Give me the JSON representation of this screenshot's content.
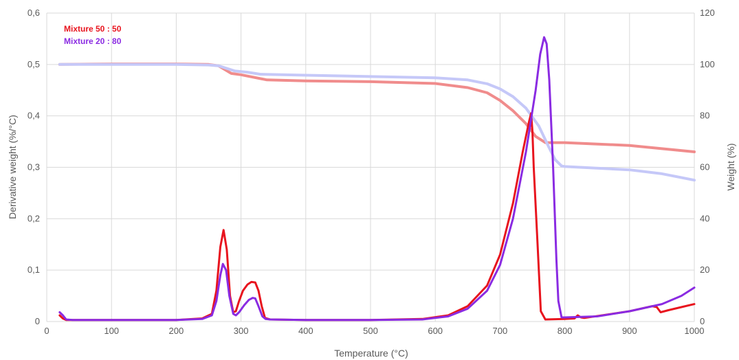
{
  "chart_data": {
    "type": "line",
    "xlabel": "Temperature  (°C)",
    "ylabel": "Derivative weight (%/°C)",
    "y2label": "Weight (%)",
    "xlim": [
      0,
      1000
    ],
    "ylim": [
      0,
      0.6
    ],
    "y2lim": [
      0,
      120
    ],
    "x_ticks": [
      "0",
      "100",
      "200",
      "300",
      "400",
      "500",
      "600",
      "700",
      "800",
      "900",
      "1000"
    ],
    "y_ticks": [
      "0",
      "0,1",
      "0,2",
      "0,3",
      "0,4",
      "0,5",
      "0,6"
    ],
    "y2_ticks": [
      "0",
      "20",
      "40",
      "60",
      "80",
      "100",
      "120"
    ],
    "grid": true,
    "legend": {
      "position": "top-left",
      "entries": [
        {
          "label": "Mixture 50 : 50",
          "color": "#e8141e"
        },
        {
          "label": "Mixture 20 : 80",
          "color": "#8a2be2"
        }
      ]
    },
    "series": [
      {
        "name": "Mixture 50 : 50",
        "axis": "left",
        "color": "#e8141e",
        "x": [
          20,
          25,
          30,
          40,
          60,
          100,
          150,
          200,
          240,
          255,
          262,
          268,
          273,
          278,
          283,
          288,
          292,
          297,
          303,
          310,
          316,
          322,
          327,
          332,
          337,
          345,
          400,
          500,
          580,
          620,
          650,
          680,
          700,
          720,
          735,
          745,
          748,
          750,
          752,
          758,
          763,
          770,
          800,
          815,
          820,
          825,
          830,
          900,
          935,
          942,
          948,
          960,
          980,
          1000
        ],
        "y": [
          0.012,
          0.006,
          0.003,
          0.003,
          0.003,
          0.003,
          0.003,
          0.003,
          0.006,
          0.015,
          0.06,
          0.145,
          0.178,
          0.14,
          0.05,
          0.018,
          0.02,
          0.04,
          0.06,
          0.072,
          0.077,
          0.076,
          0.06,
          0.03,
          0.007,
          0.004,
          0.003,
          0.003,
          0.005,
          0.012,
          0.03,
          0.07,
          0.13,
          0.23,
          0.33,
          0.39,
          0.405,
          0.37,
          0.3,
          0.15,
          0.02,
          0.004,
          0.005,
          0.006,
          0.012,
          0.008,
          0.007,
          0.02,
          0.03,
          0.028,
          0.018,
          0.022,
          0.028,
          0.034
        ]
      },
      {
        "name": "Mixture 20 : 80",
        "axis": "left",
        "color": "#8a2be2",
        "x": [
          20,
          25,
          30,
          40,
          60,
          100,
          150,
          200,
          240,
          255,
          262,
          268,
          272,
          277,
          282,
          288,
          292,
          297,
          305,
          312,
          318,
          322,
          327,
          333,
          338,
          345,
          400,
          500,
          580,
          620,
          650,
          680,
          700,
          720,
          740,
          755,
          762,
          768,
          772,
          776,
          782,
          787,
          790,
          795,
          800,
          850,
          900,
          950,
          980,
          1000
        ],
        "y": [
          0.018,
          0.012,
          0.004,
          0.003,
          0.003,
          0.003,
          0.003,
          0.003,
          0.005,
          0.012,
          0.04,
          0.09,
          0.112,
          0.1,
          0.05,
          0.015,
          0.012,
          0.018,
          0.032,
          0.042,
          0.046,
          0.045,
          0.03,
          0.01,
          0.005,
          0.004,
          0.003,
          0.003,
          0.004,
          0.01,
          0.025,
          0.06,
          0.11,
          0.2,
          0.33,
          0.45,
          0.52,
          0.553,
          0.54,
          0.47,
          0.3,
          0.12,
          0.04,
          0.008,
          0.008,
          0.01,
          0.02,
          0.034,
          0.05,
          0.066
        ]
      },
      {
        "name": "Mixture 50 : 50 weight",
        "axis": "right",
        "color": "#f08c8c",
        "x": [
          20,
          100,
          200,
          250,
          265,
          275,
          285,
          300,
          340,
          400,
          500,
          600,
          650,
          680,
          700,
          720,
          740,
          755,
          770,
          800,
          900,
          1000
        ],
        "y": [
          100,
          100.2,
          100.2,
          100,
          99.5,
          98,
          96.5,
          96,
          94,
          93.6,
          93.3,
          92.6,
          91,
          89,
          86,
          82,
          77,
          72,
          69.6,
          69.6,
          68.5,
          66
        ]
      },
      {
        "name": "Mixture 20 : 80 weight",
        "axis": "right",
        "color": "#c5c8f8",
        "x": [
          20,
          100,
          200,
          250,
          265,
          275,
          290,
          310,
          330,
          400,
          500,
          600,
          650,
          680,
          700,
          720,
          740,
          760,
          775,
          785,
          795,
          800,
          900,
          950,
          1000
        ],
        "y": [
          100,
          100,
          100,
          99.8,
          99.5,
          98.7,
          97.5,
          97,
          96.2,
          95.8,
          95.3,
          94.8,
          94,
          92.5,
          90.5,
          87.5,
          83,
          76,
          68,
          63,
          60.5,
          60.3,
          59,
          57.5,
          55
        ]
      }
    ]
  }
}
